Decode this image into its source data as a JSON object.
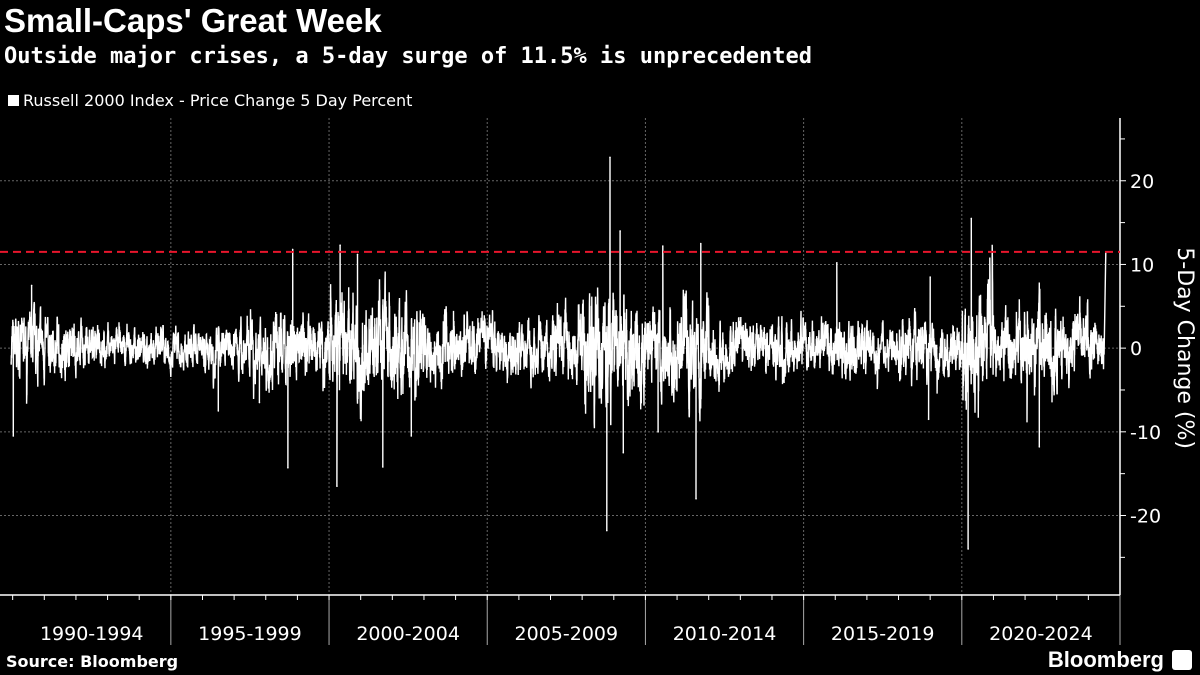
{
  "chart_data": {
    "type": "line",
    "title": "Small-Caps' Great Week",
    "subtitle": "Outside major crises, a 5-day surge of 11.5% is unprecedented",
    "legend": [
      "Russell 2000 Index - Price Change 5 Day Percent"
    ],
    "ylabel": "5-Day Change (%)",
    "ylim": [
      -29.5,
      27.5
    ],
    "yticks": [
      "20",
      "10",
      "0",
      "-10",
      "-20"
    ],
    "ytick_values": [
      20,
      10,
      0,
      -10,
      -20
    ],
    "xlim": [
      1989.6,
      2025.0
    ],
    "xticks": [
      "1990-1994",
      "1995-1999",
      "2000-2004",
      "2005-2009",
      "2010-2014",
      "2015-2019",
      "2020-2024"
    ],
    "reference_line": {
      "value": 11.5,
      "color": "#e8162c",
      "style": "dashed"
    },
    "series_color": "#ffffff",
    "volatility_by_year": {
      "1990": 3,
      "1991": 2.5,
      "1992": 2,
      "1993": 1.8,
      "1994": 1.8,
      "1995": 1.7,
      "1996": 2.2,
      "1997": 2.5,
      "1998": 3.5,
      "1999": 3,
      "2000": 5,
      "2001": 4.5,
      "2002": 4.5,
      "2003": 3,
      "2004": 2.8,
      "2005": 2.6,
      "2006": 2.6,
      "2007": 3.2,
      "2008": 6,
      "2009": 5,
      "2010": 3.8,
      "2011": 4.5,
      "2012": 2.8,
      "2013": 2.3,
      "2014": 2.6,
      "2015": 2.4,
      "2016": 2.8,
      "2017": 1.8,
      "2018": 2.8,
      "2019": 2.4,
      "2020": 5,
      "2021": 3.3,
      "2022": 4,
      "2023": 3.3,
      "2024": 3
    },
    "notable_points": [
      {
        "date": 1990.02,
        "value": -10.5
      },
      {
        "date": 1990.6,
        "value": 7.5
      },
      {
        "date": 1996.5,
        "value": -7.5
      },
      {
        "date": 1997.8,
        "value": -6.5
      },
      {
        "date": 1998.7,
        "value": -14.3
      },
      {
        "date": 1998.85,
        "value": 11.8
      },
      {
        "date": 2000.25,
        "value": -16.5
      },
      {
        "date": 2000.35,
        "value": 12.3
      },
      {
        "date": 2000.9,
        "value": 11.2
      },
      {
        "date": 2001.7,
        "value": -14.2
      },
      {
        "date": 2002.6,
        "value": -10.5
      },
      {
        "date": 2008.78,
        "value": -21.8
      },
      {
        "date": 2008.88,
        "value": 22.8
      },
      {
        "date": 2009.2,
        "value": 14
      },
      {
        "date": 2009.3,
        "value": -12.5
      },
      {
        "date": 2010.4,
        "value": -10
      },
      {
        "date": 2010.55,
        "value": 12.2
      },
      {
        "date": 2011.6,
        "value": -18
      },
      {
        "date": 2011.75,
        "value": 12.5
      },
      {
        "date": 2016.05,
        "value": 10.2
      },
      {
        "date": 2018.95,
        "value": -8.5
      },
      {
        "date": 2019.0,
        "value": 8.5
      },
      {
        "date": 2020.2,
        "value": -24
      },
      {
        "date": 2020.3,
        "value": 15.5
      },
      {
        "date": 2022.45,
        "value": -11.8
      },
      {
        "date": 2024.55,
        "value": 11.5
      }
    ]
  },
  "source": "Source: Bloomberg",
  "logo": "Bloomberg"
}
